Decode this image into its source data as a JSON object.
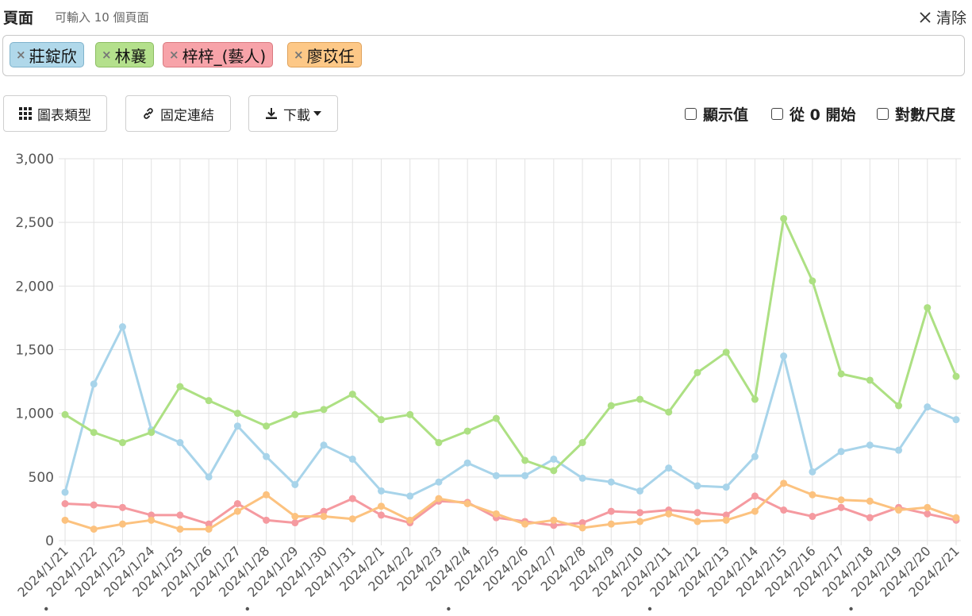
{
  "header": {
    "title": "頁面",
    "hint": "可輸入 10 個頁面",
    "clear_label": "清除"
  },
  "tags": [
    {
      "label": "莊錠欣",
      "bg": "#b0d8ea",
      "border": "#7fb3cc"
    },
    {
      "label": "林襄",
      "bg": "#b4e08c",
      "border": "#8cbd63"
    },
    {
      "label": "梓梓_(藝人)",
      "bg": "#f7a3a9",
      "border": "#d9797f"
    },
    {
      "label": "廖苡任",
      "bg": "#fdc887",
      "border": "#dfa25b"
    }
  ],
  "toolbar": {
    "chart_type_label": "圖表類型",
    "permalink_label": "固定連結",
    "download_label": "下載",
    "show_values_label": "顯示值",
    "start_zero_label": "從 0 開始",
    "log_scale_label": "對數尺度"
  },
  "chart_data": {
    "type": "line",
    "x": [
      "2024/1/21",
      "2024/1/22",
      "2024/1/23",
      "2024/1/24",
      "2024/1/25",
      "2024/1/26",
      "2024/1/27",
      "2024/1/28",
      "2024/1/29",
      "2024/1/30",
      "2024/1/31",
      "2024/2/1",
      "2024/2/2",
      "2024/2/3",
      "2024/2/4",
      "2024/2/5",
      "2024/2/6",
      "2024/2/7",
      "2024/2/8",
      "2024/2/9",
      "2024/2/10",
      "2024/2/11",
      "2024/2/12",
      "2024/2/13",
      "2024/2/14",
      "2024/2/15",
      "2024/2/16",
      "2024/2/17",
      "2024/2/18",
      "2024/2/19",
      "2024/2/20",
      "2024/2/21"
    ],
    "weekend_marked": [
      "2024/1/22",
      "2024/1/29",
      "2024/2/5",
      "2024/2/12",
      "2024/2/19"
    ],
    "ylim": [
      0,
      3000
    ],
    "yticks": [
      0,
      500,
      1000,
      1500,
      2000,
      2500,
      3000
    ],
    "ytick_labels": [
      "0",
      "500",
      "1,000",
      "1,500",
      "2,000",
      "2,500",
      "3,000"
    ],
    "grid": true,
    "series": [
      {
        "name": "莊錠欣",
        "color": "#a8d4ea",
        "values": [
          380,
          1230,
          1680,
          870,
          770,
          500,
          900,
          660,
          440,
          750,
          640,
          390,
          350,
          460,
          610,
          510,
          510,
          640,
          490,
          460,
          390,
          570,
          430,
          420,
          660,
          1450,
          540,
          700,
          750,
          710,
          1050,
          950
        ]
      },
      {
        "name": "林襄",
        "color": "#ade083",
        "values": [
          990,
          850,
          770,
          850,
          1210,
          1100,
          1000,
          900,
          990,
          1030,
          1150,
          950,
          990,
          770,
          860,
          960,
          630,
          550,
          770,
          1060,
          1110,
          1010,
          1320,
          1480,
          1110,
          2530,
          2040,
          1310,
          1260,
          1060,
          1830,
          1290
        ]
      },
      {
        "name": "梓梓_(藝人)",
        "color": "#f59aa0",
        "values": [
          290,
          280,
          260,
          200,
          200,
          130,
          290,
          160,
          140,
          230,
          330,
          200,
          140,
          310,
          300,
          180,
          150,
          120,
          140,
          230,
          220,
          240,
          220,
          200,
          350,
          240,
          190,
          260,
          180,
          260,
          210,
          160
        ]
      },
      {
        "name": "廖苡任",
        "color": "#fcc27f",
        "values": [
          160,
          90,
          130,
          160,
          90,
          90,
          230,
          360,
          190,
          190,
          170,
          270,
          160,
          330,
          290,
          210,
          130,
          160,
          100,
          130,
          150,
          210,
          150,
          160,
          230,
          450,
          360,
          320,
          310,
          240,
          260,
          180
        ]
      }
    ]
  }
}
